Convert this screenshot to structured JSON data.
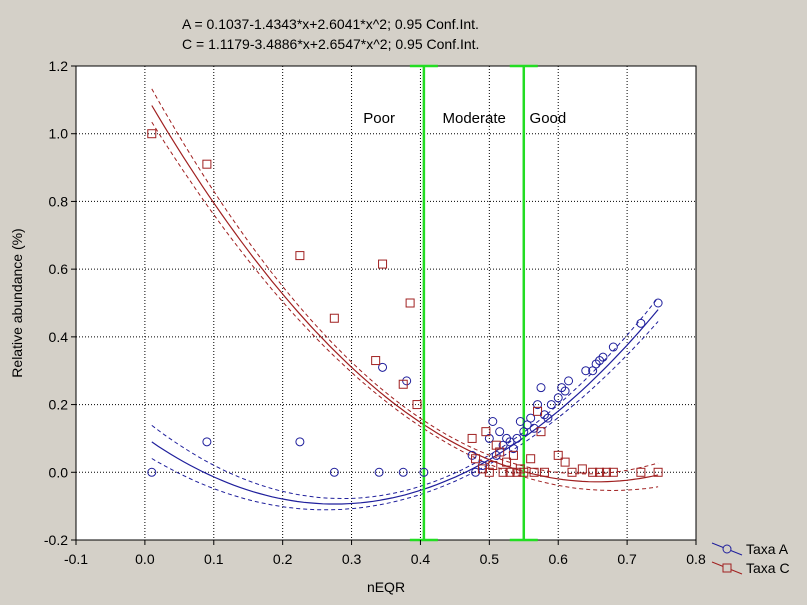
{
  "chart_data": {
    "type": "scatter",
    "title_lines": [
      "A = 0.1037-1.4343*x+2.6041*x^2; 0.95 Conf.Int.",
      "C = 1.1179-3.4886*x+2.6547*x^2; 0.95 Conf.Int."
    ],
    "xlabel": "nEQR",
    "ylabel": "Relative abundance (%)",
    "xlim": [
      -0.1,
      0.8
    ],
    "ylim": [
      -0.2,
      1.2
    ],
    "xticks": [
      "-0.1",
      "0.0",
      "0.1",
      "0.2",
      "0.3",
      "0.4",
      "0.5",
      "0.6",
      "0.7",
      "0.8"
    ],
    "yticks": [
      "-0.2",
      "0.0",
      "0.2",
      "0.4",
      "0.6",
      "0.8",
      "1.0",
      "1.2"
    ],
    "grid": true,
    "legend_position": "bottom-right-outside",
    "zone_lines": [
      0.405,
      0.55
    ],
    "zone_labels": [
      {
        "text": "Poor",
        "x": 0.34
      },
      {
        "text": "Moderate",
        "x": 0.478
      },
      {
        "text": "Good",
        "x": 0.585
      }
    ],
    "series": [
      {
        "name": "Taxa A",
        "marker": "circle",
        "color": "#1f1f9c",
        "fit": [
          0.1037,
          -1.4343,
          2.6041
        ],
        "x": [
          0.01,
          0.09,
          0.225,
          0.275,
          0.34,
          0.345,
          0.375,
          0.38,
          0.405,
          0.475,
          0.48,
          0.49,
          0.5,
          0.505,
          0.51,
          0.515,
          0.52,
          0.525,
          0.53,
          0.535,
          0.54,
          0.545,
          0.55,
          0.555,
          0.56,
          0.565,
          0.57,
          0.575,
          0.58,
          0.585,
          0.59,
          0.6,
          0.605,
          0.61,
          0.615,
          0.64,
          0.65,
          0.655,
          0.66,
          0.665,
          0.68,
          0.72,
          0.745
        ],
        "y": [
          0.0,
          0.09,
          0.09,
          0.0,
          0.0,
          0.31,
          0.0,
          0.27,
          0.0,
          0.05,
          0.0,
          0.02,
          0.1,
          0.15,
          0.05,
          0.12,
          0.08,
          0.1,
          0.09,
          0.07,
          0.1,
          0.15,
          0.12,
          0.14,
          0.16,
          0.13,
          0.2,
          0.25,
          0.17,
          0.16,
          0.2,
          0.22,
          0.25,
          0.24,
          0.27,
          0.3,
          0.3,
          0.32,
          0.33,
          0.34,
          0.37,
          0.44,
          0.5
        ]
      },
      {
        "name": "Taxa C",
        "marker": "square",
        "color": "#a02020",
        "fit": [
          1.1179,
          -3.4886,
          2.6547
        ],
        "x": [
          0.01,
          0.09,
          0.225,
          0.275,
          0.335,
          0.345,
          0.375,
          0.385,
          0.395,
          0.475,
          0.48,
          0.49,
          0.495,
          0.5,
          0.505,
          0.51,
          0.515,
          0.52,
          0.525,
          0.53,
          0.535,
          0.54,
          0.545,
          0.55,
          0.56,
          0.565,
          0.57,
          0.575,
          0.58,
          0.6,
          0.61,
          0.62,
          0.635,
          0.65,
          0.66,
          0.67,
          0.68,
          0.72,
          0.745
        ],
        "y": [
          1.0,
          0.91,
          0.64,
          0.455,
          0.33,
          0.615,
          0.26,
          0.5,
          0.2,
          0.1,
          0.04,
          0.01,
          0.12,
          0.0,
          0.02,
          0.08,
          0.06,
          0.0,
          0.03,
          0.0,
          0.05,
          0.0,
          0.01,
          0.0,
          0.04,
          0.0,
          0.18,
          0.12,
          0.0,
          0.05,
          0.03,
          0.0,
          0.01,
          0.0,
          0.0,
          0.0,
          0.0,
          0.0,
          0.0
        ]
      }
    ]
  }
}
